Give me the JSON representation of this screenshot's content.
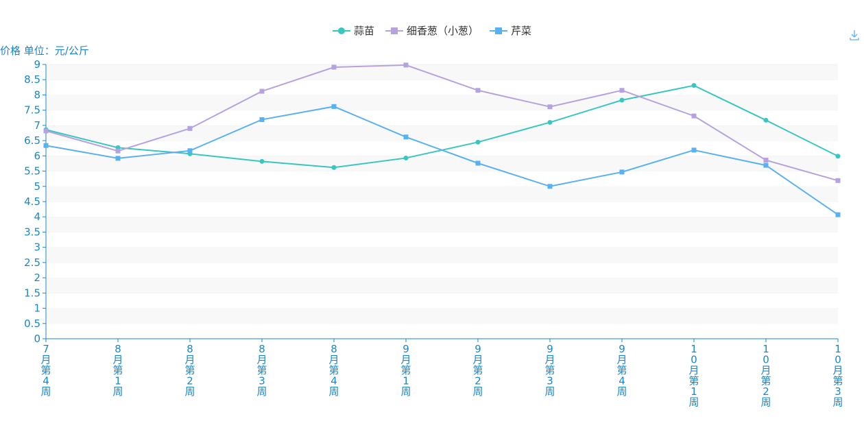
{
  "chart_data": {
    "type": "line",
    "ylabel": "价格 单位：元/公斤",
    "ylim": [
      0,
      9
    ],
    "yticks": [
      "0",
      "0.5",
      "1",
      "1.5",
      "2",
      "2.5",
      "3",
      "3.5",
      "4",
      "4.5",
      "5",
      "5.5",
      "6",
      "6.5",
      "7",
      "7.5",
      "8",
      "8.5",
      "9"
    ],
    "categories": [
      "7月第4周",
      "8月第1周",
      "8月第2周",
      "8月第3周",
      "8月第4周",
      "9月第1周",
      "9月第2周",
      "9月第3周",
      "9月第4周",
      "10月第1周",
      "10月第2周",
      "10月第3周"
    ],
    "grid": "alternating horizontal bands",
    "legend_position": "top-center",
    "series": [
      {
        "name": "蒜苗",
        "color": "#37c6c0",
        "marker": "circle",
        "values": [
          6.86,
          6.27,
          6.07,
          5.82,
          5.62,
          5.93,
          6.45,
          7.1,
          7.83,
          8.31,
          7.17,
          5.99
        ]
      },
      {
        "name": "细香葱（小葱）",
        "color": "#b6a2de",
        "marker": "square",
        "values": [
          6.82,
          6.16,
          6.9,
          8.12,
          8.91,
          8.98,
          8.15,
          7.61,
          8.15,
          7.31,
          5.86,
          5.19
        ]
      },
      {
        "name": "芹菜",
        "color": "#5ab1ef",
        "marker": "square",
        "values": [
          6.34,
          5.92,
          6.17,
          7.19,
          7.62,
          6.62,
          5.76,
          5.0,
          5.47,
          6.19,
          5.69,
          4.07
        ]
      }
    ]
  },
  "toolbar": {
    "download_icon": "download-icon"
  }
}
